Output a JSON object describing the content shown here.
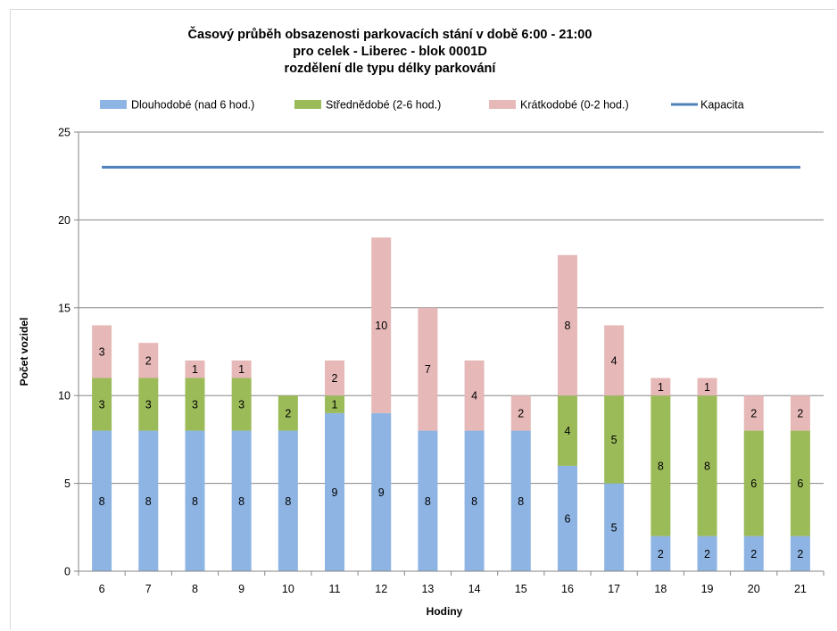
{
  "chart_data": {
    "type": "bar",
    "stacked": true,
    "title_lines": [
      "Časový průběh obsazenosti parkovacích stání v době 6:00 - 21:00",
      "pro celek - Liberec - blok 0001D",
      "rozdělení dle typu délky parkování"
    ],
    "xlabel": "Hodiny",
    "ylabel": "Počet vozidel",
    "ylim": [
      0,
      25
    ],
    "yticks": [
      0,
      5,
      10,
      15,
      20,
      25
    ],
    "grid": true,
    "legend_position": "top",
    "categories": [
      "6",
      "7",
      "8",
      "9",
      "10",
      "11",
      "12",
      "13",
      "14",
      "15",
      "16",
      "17",
      "18",
      "19",
      "20",
      "21"
    ],
    "series": [
      {
        "name": "Dlouhodobé (nad 6 hod.)",
        "color": "#8eb4e3",
        "values": [
          8,
          8,
          8,
          8,
          8,
          9,
          9,
          8,
          8,
          8,
          6,
          5,
          2,
          2,
          2,
          2
        ]
      },
      {
        "name": "Střednědobé (2-6 hod.)",
        "color": "#9bbb59",
        "values": [
          3,
          3,
          3,
          3,
          2,
          1,
          0,
          0,
          0,
          0,
          4,
          5,
          8,
          8,
          6,
          6
        ]
      },
      {
        "name": "Krátkodobé (0-2 hod.)",
        "color": "#e6b9b8",
        "values": [
          3,
          2,
          1,
          1,
          0,
          2,
          10,
          7,
          4,
          2,
          8,
          4,
          1,
          1,
          2,
          2
        ]
      }
    ],
    "line_series": {
      "name": "Kapacita",
      "color": "#4f81bd",
      "values": [
        23,
        23,
        23,
        23,
        23,
        23,
        23,
        23,
        23,
        23,
        23,
        23,
        23,
        23,
        23,
        23
      ]
    }
  }
}
